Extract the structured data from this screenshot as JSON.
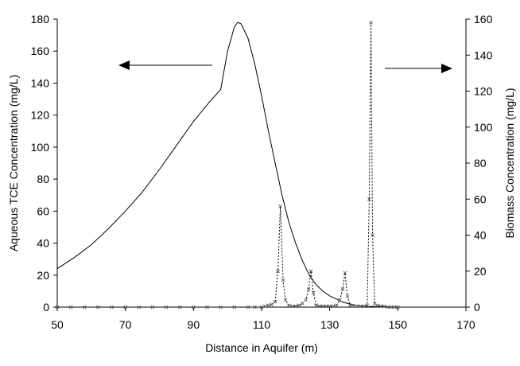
{
  "chart_data": {
    "type": "line",
    "title": "",
    "xlabel": "Distance in Aquifer (m)",
    "ylabel_left": "Aqueous TCE Concentration (mg/L)",
    "ylabel_right": "Biomass Concentration (mg/L)",
    "xlim": [
      50,
      170
    ],
    "ylim_left": [
      0,
      180
    ],
    "ylim_right": [
      0,
      160
    ],
    "x_ticks": [
      50,
      70,
      90,
      110,
      130,
      150,
      170
    ],
    "y_ticks_left": [
      0,
      20,
      40,
      60,
      80,
      100,
      120,
      140,
      160,
      180
    ],
    "y_ticks_right": [
      0,
      20,
      40,
      60,
      80,
      100,
      120,
      140,
      160
    ],
    "grid": false,
    "legend": "none",
    "annotations": [
      {
        "type": "arrow",
        "direction": "left",
        "points_to": "left axis"
      },
      {
        "type": "arrow",
        "direction": "right",
        "points_to": "right axis"
      }
    ],
    "series": [
      {
        "axis": "left",
        "style": "solid",
        "color": "#000000",
        "x": [
          50,
          55,
          60,
          65,
          70,
          75,
          80,
          85,
          90,
          95,
          98,
          100,
          102,
          103,
          104,
          106,
          108,
          110,
          112,
          114,
          116,
          118,
          120,
          122,
          124,
          126,
          128,
          130,
          132,
          134,
          136,
          138,
          140,
          145,
          150
        ],
        "y": [
          24,
          31,
          39,
          49,
          60,
          72,
          86,
          101,
          116,
          129,
          136,
          160,
          175,
          178,
          177,
          168,
          152,
          132,
          110,
          90,
          70,
          53,
          40,
          29,
          20,
          14,
          10,
          7,
          5,
          3,
          2,
          1,
          0.5,
          0.3,
          0
        ]
      },
      {
        "axis": "right",
        "style": "dotted",
        "color": "#000000",
        "marker": "x",
        "x": [
          50,
          54,
          58,
          62,
          66,
          70,
          74,
          78,
          82,
          86,
          90,
          94,
          98,
          102,
          106,
          108,
          110,
          111,
          112,
          113,
          114,
          114.8,
          115.5,
          116.3,
          117,
          118,
          119,
          120,
          121,
          122,
          123,
          123.8,
          124.5,
          125.2,
          126,
          127,
          128,
          129,
          130,
          131,
          132,
          133,
          133.8,
          134.5,
          135.2,
          136,
          137,
          138,
          139,
          140,
          141,
          141.6,
          142.1,
          142.6,
          143.2,
          144,
          145,
          146,
          147,
          148,
          149,
          150
        ],
        "y": [
          0,
          0,
          0,
          0,
          0,
          0,
          0,
          0,
          0,
          0,
          0,
          0,
          0,
          0,
          0,
          0,
          0,
          0.5,
          1,
          1.5,
          3,
          20,
          56,
          15,
          4,
          1,
          0.5,
          0.5,
          1,
          2,
          4,
          10,
          20,
          8,
          1,
          0.5,
          0.5,
          0.5,
          0.5,
          0.5,
          1,
          4,
          10,
          19,
          6,
          1,
          0.5,
          0.5,
          0.5,
          0.5,
          1,
          60,
          158,
          40,
          2,
          1,
          0.5,
          0.5,
          0,
          0,
          0,
          0
        ]
      }
    ]
  }
}
